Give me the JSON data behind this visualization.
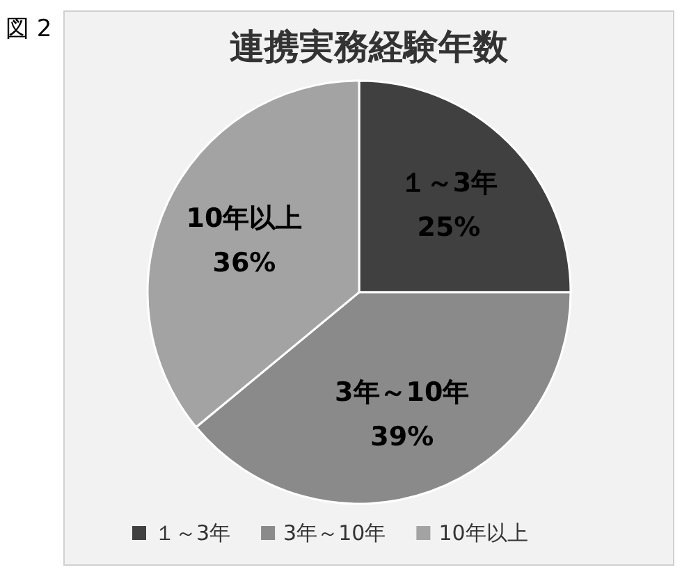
{
  "chart_data": {
    "type": "pie",
    "title": "連携実務経験年数",
    "categories": [
      "１～3年",
      "3年～10年",
      "10年以上"
    ],
    "values": [
      25,
      39,
      36
    ],
    "colors": [
      "#404040",
      "#8a8a8a",
      "#a3a3a3"
    ],
    "value_labels": [
      "25%",
      "39%",
      "36%"
    ],
    "legend": "bottom",
    "annotations": [
      "図 2"
    ]
  }
}
